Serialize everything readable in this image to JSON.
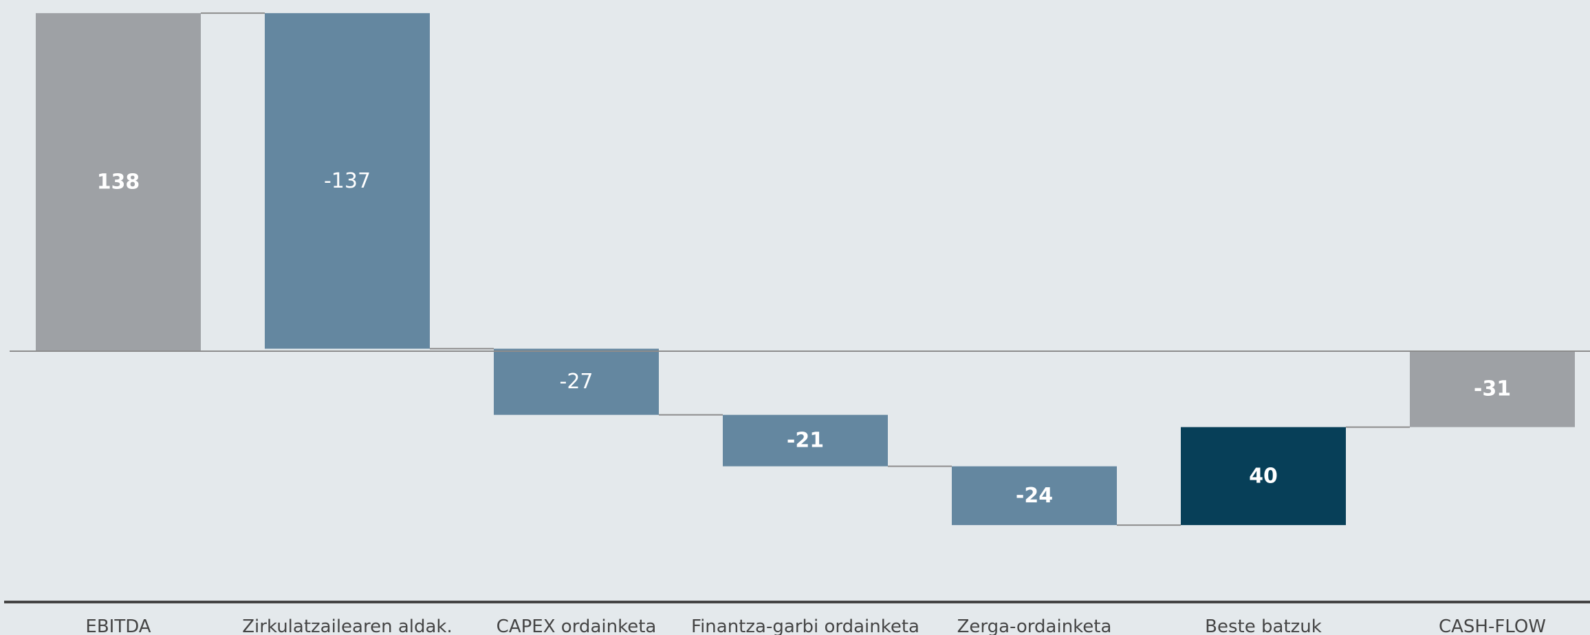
{
  "chart_data": {
    "type": "waterfall",
    "title": "",
    "xlabel": "",
    "ylabel": "",
    "categories": [
      "EBITDA",
      "Zirkulatzailearen aldak.",
      "CAPEX ordainketa",
      "Finantza-garbi ordainketa",
      "Zerga-ordainketa",
      "Beste batzuk",
      "CASH-FLOW"
    ],
    "values": [
      138,
      -137,
      -27,
      -21,
      -24,
      40,
      -31
    ],
    "labels": [
      "138",
      "-137",
      "-27",
      "-21",
      "-24",
      "40",
      "-31"
    ],
    "bar_kinds": [
      "total",
      "delta",
      "delta",
      "delta",
      "delta",
      "delta",
      "total"
    ],
    "label_weights": [
      "bold",
      "regular",
      "regular",
      "bold",
      "bold",
      "bold",
      "bold"
    ],
    "bar_colors": [
      "#9ea1a5",
      "#6487a0",
      "#6487a0",
      "#6487a0",
      "#6487a0",
      "#073f58",
      "#9ea1a5"
    ],
    "label_color": "#ffffff",
    "connector_color": "#8c8c8c",
    "zero_line_color": "#8c8c8c",
    "axis_line_color": "#444444",
    "background": "#e4e9ec",
    "ylim": [
      -72,
      140
    ],
    "grid": false,
    "legend": "none"
  }
}
